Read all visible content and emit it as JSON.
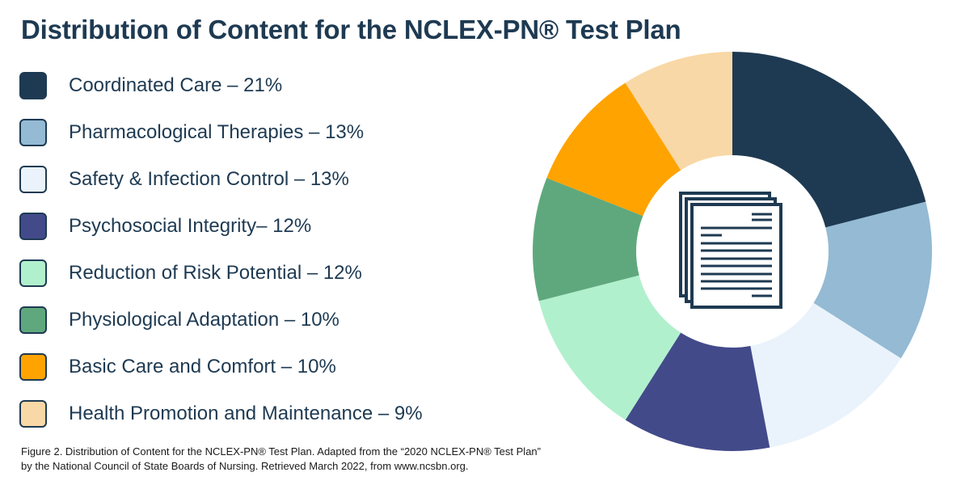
{
  "title": "Distribution of Content for the NCLEX-PN® Test Plan",
  "chart_data": {
    "type": "pie",
    "variant": "donut",
    "title": "Distribution of Content for the NCLEX-PN® Test Plan",
    "legend_position": "left",
    "center_icon": "document-stack-icon",
    "slices": [
      {
        "label": "Coordinated Care – 21%",
        "name": "Coordinated Care",
        "value": 21,
        "color": "#1e3a52"
      },
      {
        "label": "Pharmacological Therapies – 13%",
        "name": "Pharmacological Therapies",
        "value": 13,
        "color": "#94bad4"
      },
      {
        "label": "Safety & Infection Control – 13%",
        "name": "Safety & Infection Control",
        "value": 13,
        "color": "#eaf3fb"
      },
      {
        "label": "Psychosocial Integrity– 12%",
        "name": "Psychosocial Integrity",
        "value": 12,
        "color": "#434a8a"
      },
      {
        "label": "Reduction of Risk Potential – 12%",
        "name": "Reduction of Risk Potential",
        "value": 12,
        "color": "#b1f0cd"
      },
      {
        "label": "Physiological Adaptation – 10%",
        "name": "Physiological Adaptation",
        "value": 10,
        "color": "#5fa87d"
      },
      {
        "label": "Basic Care and Comfort – 10%",
        "name": "Basic Care and Comfort",
        "value": 10,
        "color": "#ffa300"
      },
      {
        "label": "Health Promotion and Maintenance – 9%",
        "name": "Health Promotion and Maintenance",
        "value": 9,
        "color": "#f8d8a6"
      }
    ]
  },
  "caption": "Figure 2. Distribution of Content for the NCLEX-PN® Test Plan. Adapted from the “2020 NCLEX-PN® Test Plan” by the National Council of State Boards of Nursing. Retrieved March 2022, from www.ncsbn.org."
}
